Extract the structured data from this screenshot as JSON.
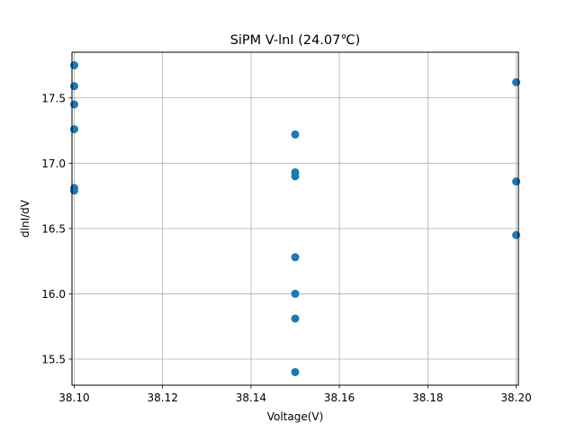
{
  "chart_data": {
    "type": "scatter",
    "title": "SiPM V-lnI (24.07℃)",
    "xlabel": "Voltage(V)",
    "ylabel": "dlnI/dV",
    "xlim": [
      38.0995,
      38.2005
    ],
    "ylim": [
      15.3,
      17.85
    ],
    "x_ticks": [
      38.1,
      38.12,
      38.14,
      38.16,
      38.18,
      38.2
    ],
    "x_tick_labels": [
      "38.10",
      "38.12",
      "38.14",
      "38.16",
      "38.18",
      "38.20"
    ],
    "y_ticks": [
      15.5,
      16.0,
      16.5,
      17.0,
      17.5
    ],
    "y_tick_labels": [
      "15.5",
      "16.0",
      "16.5",
      "17.0",
      "17.5"
    ],
    "grid": true,
    "marker_color": "#1f77b4",
    "series": [
      {
        "points": [
          {
            "x": 38.1,
            "y": 17.75
          },
          {
            "x": 38.1,
            "y": 17.59
          },
          {
            "x": 38.1,
            "y": 17.45
          },
          {
            "x": 38.1,
            "y": 17.26
          },
          {
            "x": 38.1,
            "y": 16.81
          },
          {
            "x": 38.1,
            "y": 16.79
          },
          {
            "x": 38.15,
            "y": 17.22
          },
          {
            "x": 38.15,
            "y": 16.93
          },
          {
            "x": 38.15,
            "y": 16.9
          },
          {
            "x": 38.15,
            "y": 16.28
          },
          {
            "x": 38.15,
            "y": 16.0
          },
          {
            "x": 38.15,
            "y": 15.81
          },
          {
            "x": 38.15,
            "y": 15.4
          },
          {
            "x": 38.2,
            "y": 17.62
          },
          {
            "x": 38.2,
            "y": 16.86
          },
          {
            "x": 38.2,
            "y": 16.45
          }
        ]
      }
    ]
  }
}
